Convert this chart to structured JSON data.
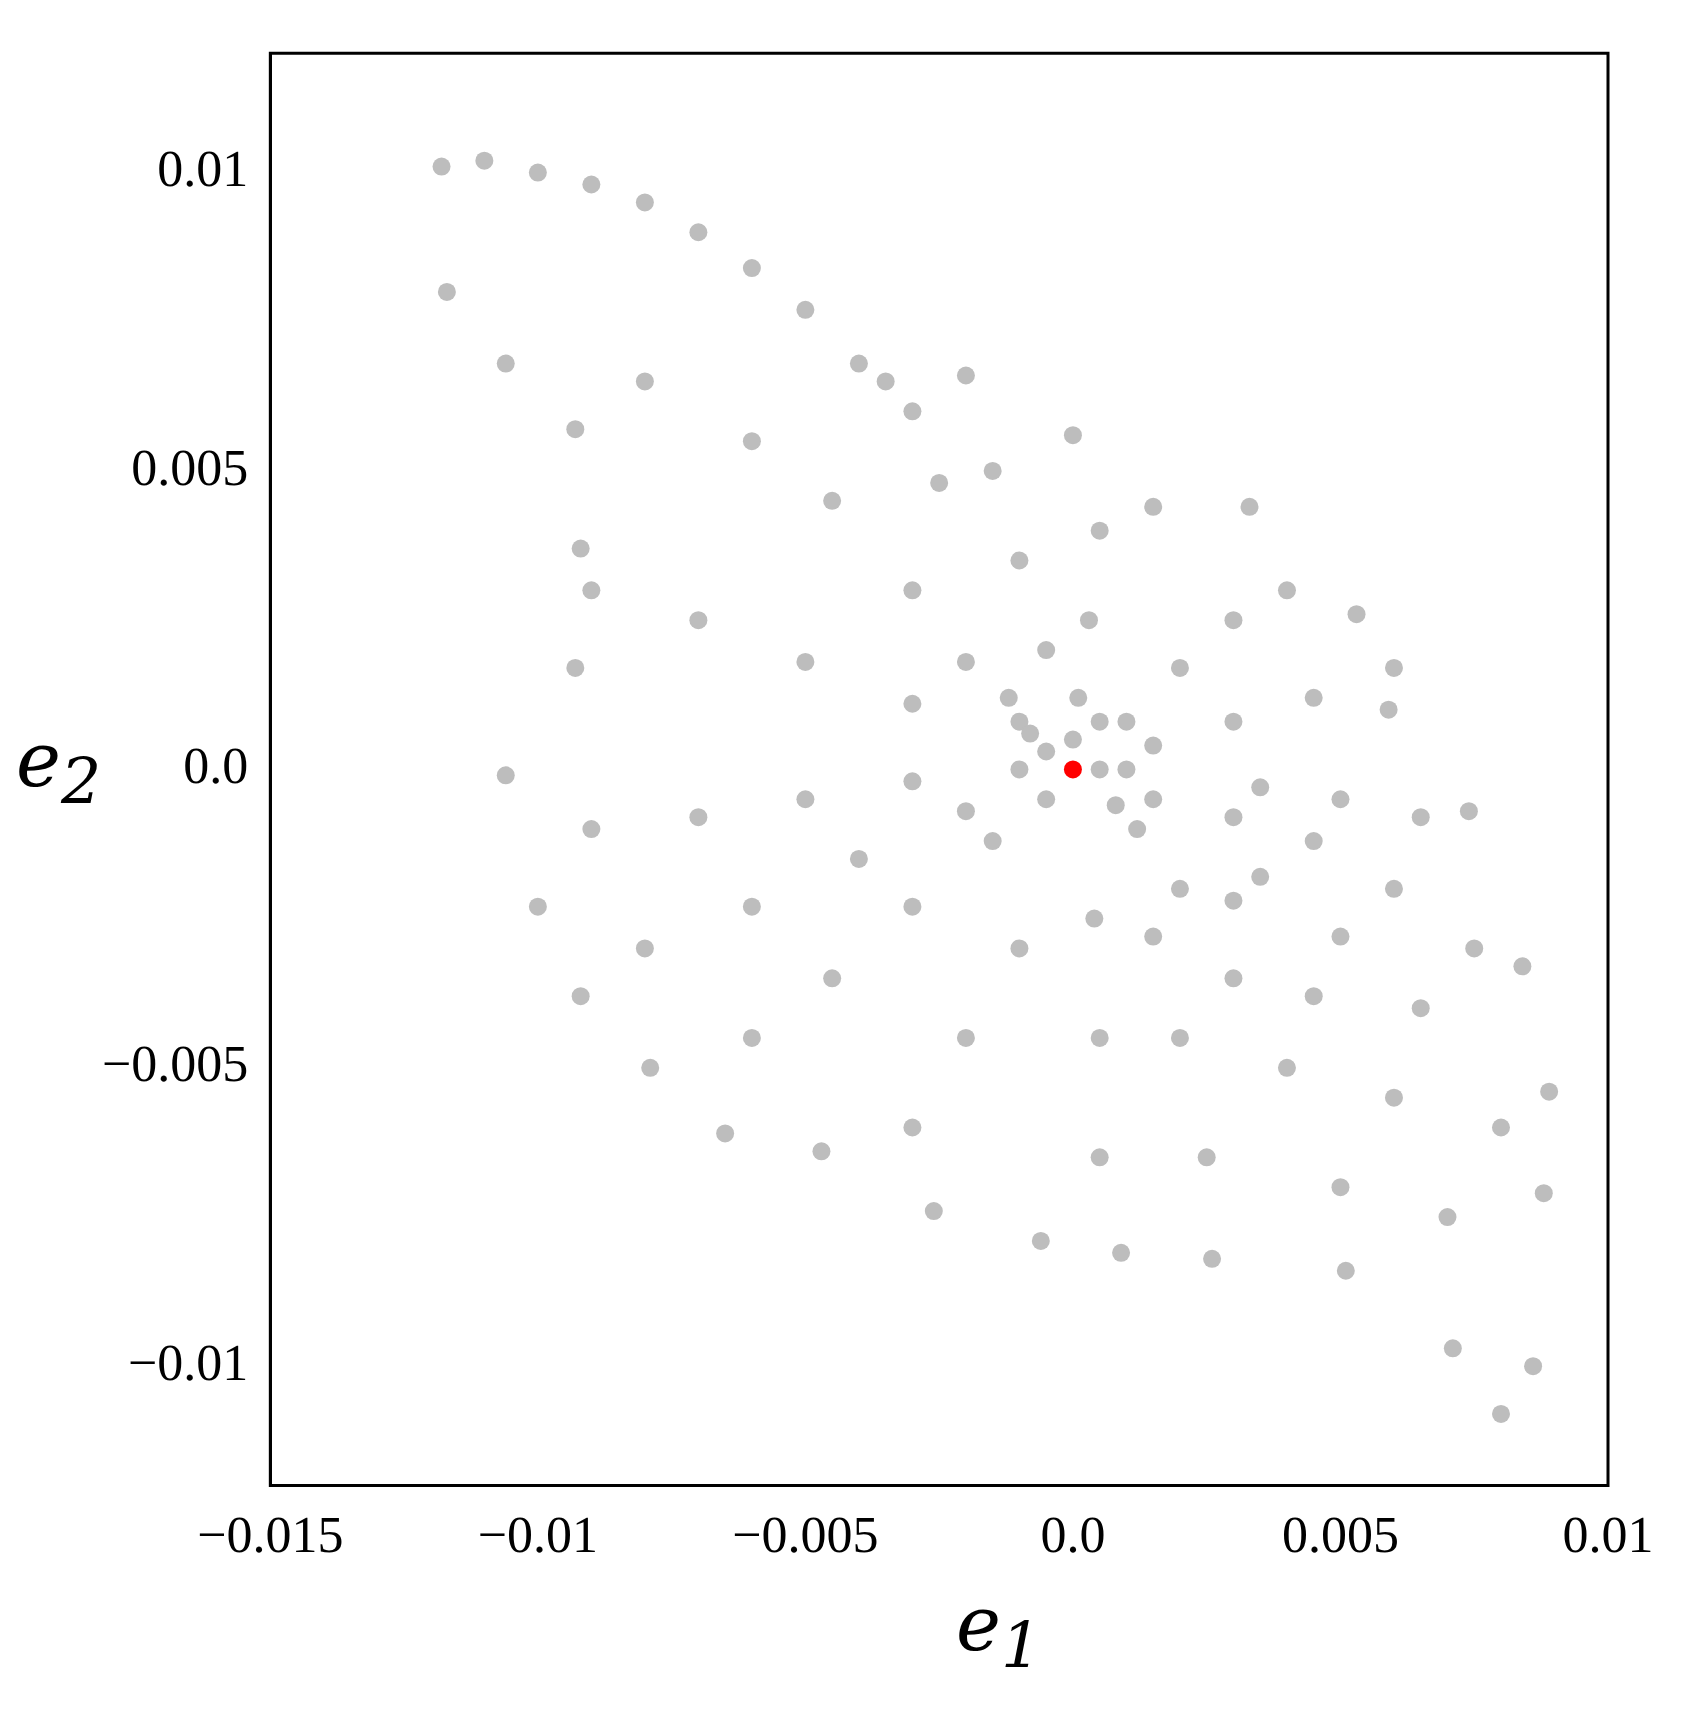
{
  "chart_data": {
    "type": "scatter",
    "xlabel": "e$_{1}$",
    "ylabel": "e$_{2}$",
    "xlim": [
      -0.015,
      0.01
    ],
    "ylim": [
      -0.012,
      0.012
    ],
    "xticks": [
      {
        "value": -0.015,
        "label": "−0.015"
      },
      {
        "value": -0.01,
        "label": "−0.01"
      },
      {
        "value": -0.005,
        "label": "−0.005"
      },
      {
        "value": 0,
        "label": "0.0"
      },
      0.005,
      0.01
    ],
    "yticks": [
      {
        "value": -0.01,
        "label": "−0.01"
      },
      {
        "value": -0.005,
        "label": "−0.005"
      },
      {
        "value": 0,
        "label": "0.0"
      },
      0.005,
      0.01
    ],
    "grid": false,
    "legend": false,
    "marker": "circle",
    "series": [
      {
        "color": "#bdbdbd",
        "x": [
          -0.0118,
          -0.011,
          -0.01,
          -0.009,
          -0.008,
          -0.007,
          -0.006,
          -0.005,
          -0.004,
          -0.003,
          -0.002,
          0.0,
          0.0015,
          0.0033,
          0.004,
          0.0053,
          0.006,
          -0.0117,
          -0.0106,
          -0.0093,
          -0.0092,
          -0.0093,
          -0.0106,
          -0.01,
          -0.0092,
          -0.0079,
          -0.0065,
          -0.0047,
          -0.0026,
          -0.0006,
          0.0009,
          0.0026,
          0.0051,
          0.0071,
          0.008,
          0.0086,
          0.0088,
          0.0089,
          0.0084,
          0.0074,
          0.0059,
          -0.008,
          -0.006,
          -0.0045,
          -0.003,
          -0.002,
          -0.001,
          -0.009,
          -0.007,
          -0.005,
          -0.003,
          -0.009,
          -0.007,
          -0.005,
          -0.003,
          -0.008,
          -0.006,
          -0.004,
          -0.002,
          -0.006,
          -0.0045,
          -0.003,
          -0.0015,
          -0.003,
          -0.002,
          -0.001,
          0.0005,
          0.0005,
          0.0004,
          0.0025,
          0.002,
          0.0015,
          0.005,
          0.004,
          0.003,
          0.002,
          0.007,
          0.006,
          0.0045,
          0.003,
          0.008,
          0.0065,
          0.005,
          0.0035,
          0.0075,
          0.006,
          0.0045,
          0.003,
          0.0065,
          0.005,
          0.0035,
          0.0045,
          0.003,
          0.0015,
          0.003,
          0.002,
          0.001,
          0.0005,
          0.0003,
          0.0001,
          -0.0015,
          -0.001,
          -0.0005,
          -0.0035,
          -0.0025,
          0.0,
          0.0005,
          -0.0005,
          0.0008,
          -0.0008,
          0.0012,
          -0.0012,
          0.0015,
          -0.0005,
          0.0005,
          0.001,
          -0.001
        ],
        "values": [
          0.0101,
          0.0102,
          0.01,
          0.0098,
          0.0095,
          0.009,
          0.0084,
          0.0077,
          0.0068,
          0.006,
          0.0066,
          0.0056,
          0.0044,
          0.0044,
          0.003,
          0.0026,
          0.0017,
          0.008,
          0.0068,
          0.0057,
          0.0037,
          0.0017,
          -0.0001,
          -0.0023,
          -0.0038,
          -0.005,
          -0.0061,
          -0.0064,
          -0.0074,
          -0.0079,
          -0.0081,
          -0.0082,
          -0.0084,
          -0.0097,
          -0.0108,
          -0.01,
          -0.0071,
          -0.0054,
          -0.0033,
          -0.0007,
          0.001,
          0.0065,
          0.0055,
          0.0045,
          0.003,
          0.0018,
          0.0008,
          0.003,
          0.0025,
          0.0018,
          0.0011,
          -0.001,
          -0.0008,
          -0.0005,
          -0.0002,
          -0.003,
          -0.0023,
          -0.0015,
          -0.0007,
          -0.0045,
          -0.0035,
          -0.0023,
          -0.0012,
          -0.006,
          -0.0045,
          -0.003,
          -0.0065,
          -0.0045,
          -0.0025,
          -0.0065,
          -0.0045,
          -0.0028,
          -0.007,
          -0.005,
          -0.0035,
          -0.002,
          -0.0075,
          -0.0055,
          -0.0038,
          -0.0022,
          -0.006,
          -0.004,
          -0.0028,
          -0.0018,
          -0.003,
          -0.002,
          -0.0012,
          -0.0008,
          -0.0008,
          -0.0005,
          -0.0003,
          0.0012,
          0.0008,
          0.0004,
          0.0025,
          0.0017,
          0.0008,
          0.004,
          0.0025,
          0.0012,
          0.005,
          0.0035,
          0.002,
          0.0065,
          0.0048,
          0.0005,
          0.0,
          0.0003,
          -0.0006,
          0.0006,
          -0.001,
          0.0012,
          -0.0005,
          -0.0005,
          0.0008,
          0.0,
          0.0
        ]
      },
      {
        "color": "#ff0000",
        "x": [
          0
        ],
        "values": [
          0
        ]
      }
    ]
  }
}
